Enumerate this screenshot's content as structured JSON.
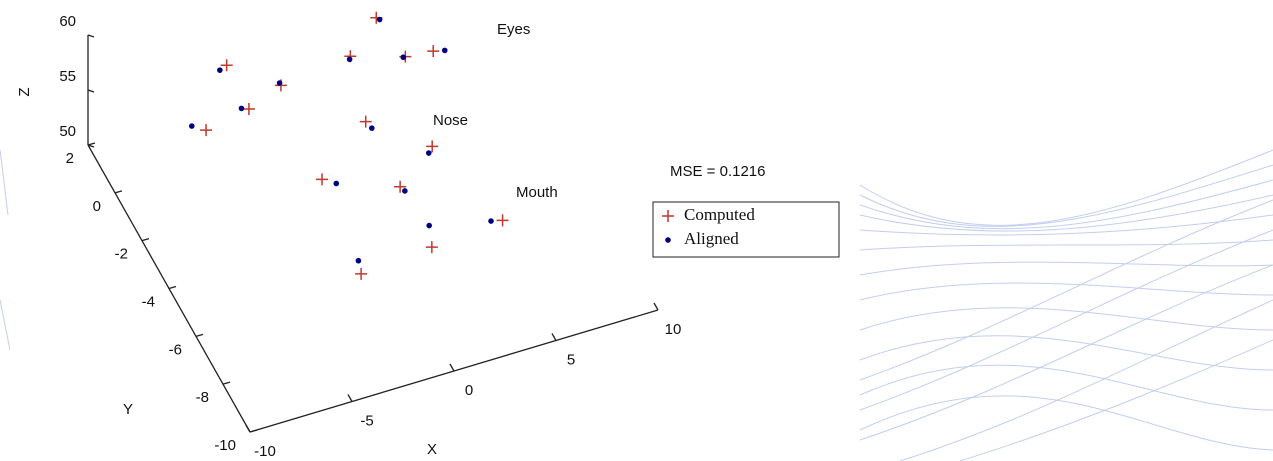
{
  "chart_data": {
    "type": "scatter3d",
    "annotations": [
      "Eyes",
      "Nose",
      "Mouth",
      "MSE = 0.1216"
    ],
    "xlabel": "X",
    "ylabel": "Y",
    "zlabel": "Z",
    "xlim": [
      -10,
      10
    ],
    "ylim": [
      -10,
      2
    ],
    "zlim": [
      50,
      60
    ],
    "xticks": [
      -10,
      -5,
      0,
      5,
      10
    ],
    "yticks": [
      -10,
      -8,
      -6,
      -4,
      -2,
      0,
      2
    ],
    "zticks": [
      50,
      55,
      60
    ],
    "series": [
      {
        "name": "Computed",
        "color": "#c0392b",
        "marker": "+",
        "x": [
          3.8,
          5.4,
          1.8,
          4.1,
          -3.6,
          -1.8,
          -3.7,
          -6.0,
          0.9,
          3.1,
          -2.3,
          0.8,
          4.3,
          0.7,
          -2.9
        ],
        "y": [
          1.5,
          -0.3,
          0.4,
          -0.2,
          1.4,
          0.1,
          -0.4,
          -0.7,
          -2.1,
          -3.7,
          -3.7,
          -4.8,
          -7.1,
          -7.3,
          -7.5
        ],
        "z": [
          55,
          55,
          55,
          55,
          55,
          55,
          55,
          55,
          55,
          55,
          55,
          55,
          55,
          55,
          55
        ]
      },
      {
        "name": "Aligned",
        "color": "#000080",
        "marker": "dot",
        "x": [
          3.9,
          5.9,
          1.7,
          4.0,
          -4.0,
          -1.8,
          -4.0,
          -6.5,
          1.0,
          2.8,
          -1.8,
          0.9,
          3.8,
          1.1,
          -2.7
        ],
        "y": [
          1.4,
          -0.4,
          0.3,
          -0.2,
          1.3,
          0.2,
          -0.3,
          -0.4,
          -2.4,
          -3.9,
          -4.0,
          -5.0,
          -7.0,
          -6.5,
          -7.0
        ],
        "z": [
          55,
          55,
          55,
          55,
          55,
          55,
          55,
          55,
          55,
          55,
          55,
          55,
          55,
          55,
          55
        ]
      }
    ]
  }
}
